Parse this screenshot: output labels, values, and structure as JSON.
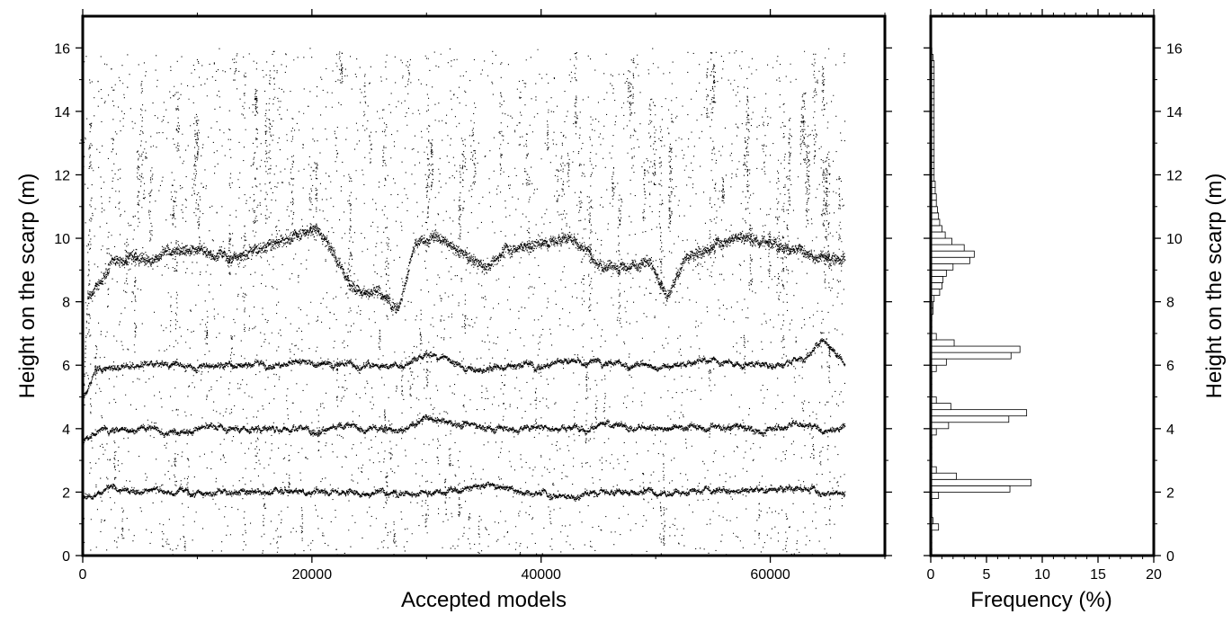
{
  "chart_data": [
    {
      "type": "scatter",
      "title": "",
      "xlabel": "Accepted models",
      "ylabel": "Height on the scarp (m)",
      "xlim": [
        0,
        70000
      ],
      "ylim": [
        0,
        17
      ],
      "x_major_ticks": [
        0,
        20000,
        40000,
        60000
      ],
      "x_major_tick_labels": [
        "0",
        "20000",
        "40000",
        "60000"
      ],
      "y_major_ticks": [
        0,
        2,
        4,
        6,
        8,
        10,
        12,
        14,
        16
      ],
      "y_major_tick_labels": [
        "0",
        "2",
        "4",
        "6",
        "8",
        "10",
        "12",
        "14",
        "16"
      ],
      "grid": false,
      "legend": "none",
      "marker_color": "#000000",
      "x_extent": [
        0,
        66500
      ],
      "series": [
        {
          "level": [
            [
              0,
              4.5
            ],
            [
              400,
              8.2
            ],
            [
              1500,
              8.6
            ],
            [
              2500,
              9.3
            ],
            [
              6000,
              9.4
            ],
            [
              9000,
              9.7
            ],
            [
              13000,
              9.4
            ],
            [
              17000,
              9.9
            ],
            [
              20500,
              10.4
            ],
            [
              22000,
              9.5
            ],
            [
              23500,
              8.5
            ],
            [
              26000,
              8.3
            ],
            [
              27500,
              7.8
            ],
            [
              29000,
              9.9
            ],
            [
              31000,
              10.1
            ],
            [
              33000,
              9.5
            ],
            [
              35000,
              9.1
            ],
            [
              37000,
              9.7
            ],
            [
              40000,
              9.9
            ],
            [
              42500,
              10.1
            ],
            [
              45000,
              9.2
            ],
            [
              47500,
              9.1
            ],
            [
              49500,
              9.3
            ],
            [
              51000,
              8.1
            ],
            [
              52500,
              9.3
            ],
            [
              55000,
              9.8
            ],
            [
              57500,
              10.1
            ],
            [
              60000,
              9.9
            ],
            [
              63500,
              9.5
            ],
            [
              66500,
              9.3
            ]
          ]
        },
        {
          "level": [
            [
              0,
              5.0
            ],
            [
              1000,
              5.9
            ],
            [
              5000,
              6.0
            ],
            [
              12000,
              6.0
            ],
            [
              20000,
              6.1
            ],
            [
              28000,
              6.0
            ],
            [
              30000,
              6.3
            ],
            [
              33000,
              6.0
            ],
            [
              35000,
              5.8
            ],
            [
              37000,
              6.0
            ],
            [
              45000,
              6.1
            ],
            [
              50000,
              6.0
            ],
            [
              55000,
              6.1
            ],
            [
              60000,
              6.0
            ],
            [
              62500,
              6.2
            ],
            [
              64500,
              6.8
            ],
            [
              66500,
              5.9
            ]
          ]
        },
        {
          "level": [
            [
              0,
              3.5
            ],
            [
              800,
              3.9
            ],
            [
              5000,
              4.0
            ],
            [
              15000,
              4.0
            ],
            [
              25000,
              4.0
            ],
            [
              28000,
              4.0
            ],
            [
              30000,
              4.4
            ],
            [
              33000,
              4.2
            ],
            [
              35000,
              4.0
            ],
            [
              45000,
              4.1
            ],
            [
              50000,
              4.0
            ],
            [
              55000,
              4.1
            ],
            [
              60000,
              4.0
            ],
            [
              62500,
              4.2
            ],
            [
              64500,
              4.0
            ],
            [
              66500,
              4.1
            ]
          ]
        },
        {
          "level": [
            [
              0,
              1.9
            ],
            [
              2000,
              2.1
            ],
            [
              10000,
              2.0
            ],
            [
              20000,
              2.1
            ],
            [
              30000,
              2.0
            ],
            [
              35000,
              2.2
            ],
            [
              40000,
              2.0
            ],
            [
              43000,
              1.9
            ],
            [
              45000,
              2.1
            ],
            [
              50000,
              2.0
            ],
            [
              55000,
              2.1
            ],
            [
              60000,
              2.0
            ],
            [
              62500,
              2.2
            ],
            [
              64500,
              2.0
            ],
            [
              66500,
              2.0
            ]
          ]
        }
      ]
    },
    {
      "type": "bar",
      "orientation": "horizontal",
      "title": "",
      "xlabel": "Frequency (%)",
      "ylabel": "Height on the scarp (m)",
      "xlim": [
        0,
        20
      ],
      "ylim": [
        0,
        17
      ],
      "x_major_ticks": [
        0,
        5,
        10,
        15,
        20
      ],
      "x_major_tick_labels": [
        "0",
        "5",
        "10",
        "15",
        "20"
      ],
      "y_major_ticks": [
        0,
        2,
        4,
        6,
        8,
        10,
        12,
        14,
        16
      ],
      "y_major_tick_labels": [
        "0",
        "2",
        "4",
        "6",
        "8",
        "10",
        "12",
        "14",
        "16"
      ],
      "bin_width": 0.2,
      "grid": false,
      "bar_fill": "#ffffff",
      "bar_stroke": "#000000",
      "bins_lower_edge": [
        0.0,
        0.2,
        0.4,
        0.6,
        0.8,
        1.0,
        1.2,
        1.4,
        1.6,
        1.8,
        2.0,
        2.2,
        2.4,
        2.6,
        2.8,
        3.0,
        3.2,
        3.4,
        3.6,
        3.8,
        4.0,
        4.2,
        4.4,
        4.6,
        4.8,
        5.0,
        5.2,
        5.4,
        5.6,
        5.8,
        6.0,
        6.2,
        6.4,
        6.6,
        6.8,
        7.0,
        7.2,
        7.4,
        7.6,
        7.8,
        8.0,
        8.2,
        8.4,
        8.6,
        8.8,
        9.0,
        9.2,
        9.4,
        9.6,
        9.8,
        10.0,
        10.2,
        10.4,
        10.6,
        10.8,
        11.0,
        11.2,
        11.4,
        11.6,
        11.8,
        12.0,
        12.2,
        12.4,
        12.6,
        12.8,
        13.0,
        13.2,
        13.4,
        13.6,
        13.8,
        14.0,
        14.2,
        14.4,
        14.6,
        14.8,
        15.0,
        15.2,
        15.4,
        15.6,
        15.8
      ],
      "values": [
        0.1,
        0.1,
        0.1,
        0.1,
        0.7,
        0.2,
        0.1,
        0.1,
        0.1,
        0.7,
        7.1,
        9.0,
        2.3,
        0.5,
        0.1,
        0.1,
        0.1,
        0.1,
        0.1,
        0.5,
        1.6,
        7.0,
        8.6,
        1.8,
        0.5,
        0.1,
        0.1,
        0.1,
        0.1,
        0.5,
        1.4,
        7.2,
        8.0,
        2.1,
        0.5,
        0.1,
        0.1,
        0.1,
        0.2,
        0.2,
        0.3,
        0.8,
        1.0,
        1.1,
        1.4,
        2.0,
        3.5,
        3.9,
        3.0,
        1.9,
        1.3,
        1.0,
        0.8,
        0.7,
        0.6,
        0.5,
        0.5,
        0.4,
        0.4,
        0.3,
        0.3,
        0.3,
        0.3,
        0.3,
        0.3,
        0.3,
        0.3,
        0.3,
        0.3,
        0.3,
        0.3,
        0.3,
        0.3,
        0.3,
        0.3,
        0.3,
        0.3,
        0.3,
        0.2,
        0.1
      ]
    }
  ]
}
